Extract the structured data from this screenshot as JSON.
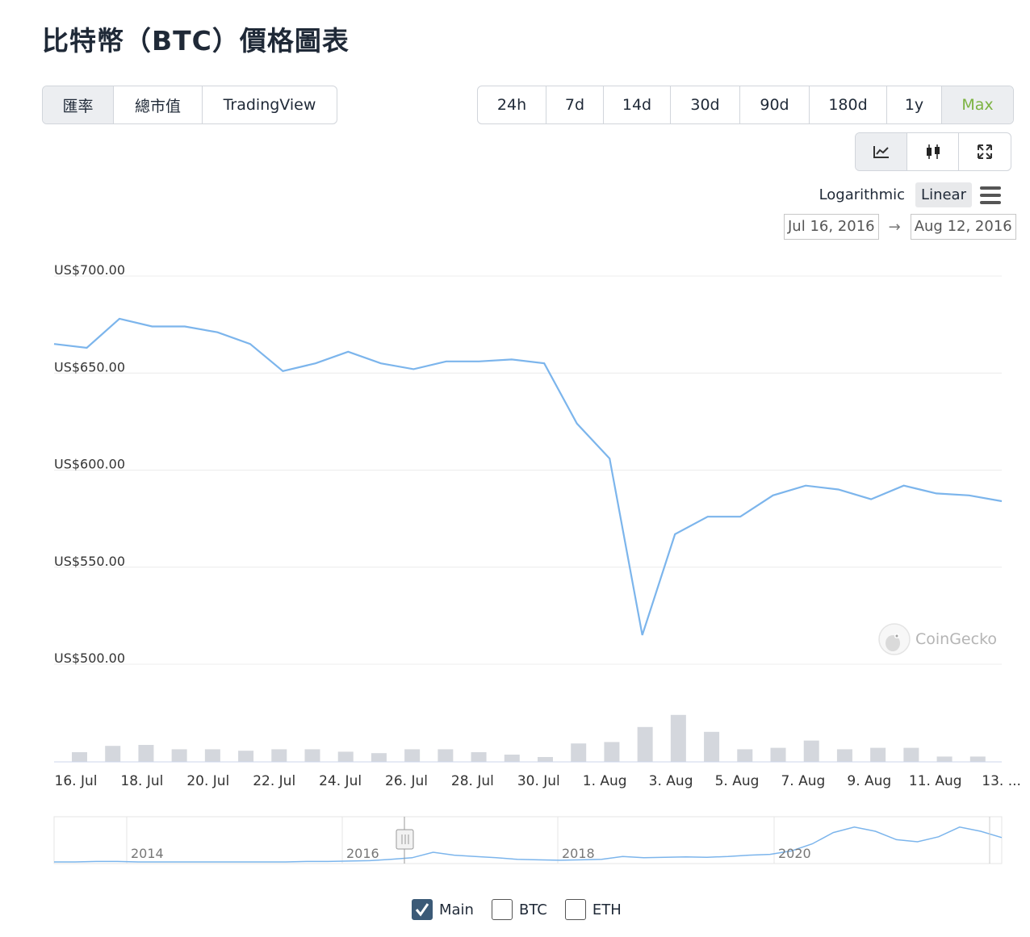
{
  "title": "比特幣（BTC）價格圖表",
  "view_tabs": [
    "匯率",
    "總市值",
    "TradingView"
  ],
  "range_tabs": [
    "24h",
    "7d",
    "14d",
    "30d",
    "90d",
    "180d",
    "1y",
    "Max"
  ],
  "tools": [
    {
      "name": "line-chart-icon",
      "glyph": "⟋"
    },
    {
      "name": "candlestick-icon",
      "glyph": "▮"
    },
    {
      "name": "fullscreen-icon",
      "glyph": "⤢"
    }
  ],
  "scale": {
    "log_label": "Logarithmic",
    "linear_label": "Linear",
    "active": "Linear"
  },
  "date_range": {
    "from": "Jul 16, 2016",
    "to": "Aug 12, 2016",
    "arrow": "→"
  },
  "watermark": "CoinGecko",
  "legend": [
    {
      "label": "Main",
      "checked": true
    },
    {
      "label": "BTC",
      "checked": false
    },
    {
      "label": "ETH",
      "checked": false
    }
  ],
  "colors": {
    "line": "#7cb5ec",
    "volume": "#d4d7dd",
    "max_active": "#7cb342"
  },
  "chart_data": {
    "type": "line",
    "y_ticks": [
      "US$700.00",
      "US$650.00",
      "US$600.00",
      "US$550.00",
      "US$500.00"
    ],
    "ylim": [
      500,
      700
    ],
    "x_tick_labels": [
      "16. Jul",
      "18. Jul",
      "20. Jul",
      "22. Jul",
      "24. Jul",
      "26. Jul",
      "28. Jul",
      "30. Jul",
      "1. Aug",
      "3. Aug",
      "5. Aug",
      "7. Aug",
      "9. Aug",
      "11. Aug",
      "13. ..."
    ],
    "series": [
      {
        "values": [
          665,
          663,
          678,
          674,
          674,
          671,
          665,
          651,
          655,
          661,
          655,
          652,
          656,
          656,
          657,
          655,
          624,
          606,
          515,
          567,
          576,
          576,
          587,
          592,
          590,
          585,
          592,
          588,
          587,
          584
        ]
      }
    ],
    "volume_relative": [
      0.2,
      0.33,
      0.35,
      0.26,
      0.26,
      0.23,
      0.26,
      0.26,
      0.21,
      0.18,
      0.26,
      0.26,
      0.2,
      0.15,
      0.1,
      0.38,
      0.41,
      0.72,
      0.97,
      0.62,
      0.26,
      0.29,
      0.44,
      0.26,
      0.29,
      0.29,
      0.11,
      0.11
    ],
    "navigator": {
      "year_labels": [
        "2014",
        "2016",
        "2018",
        "2020"
      ],
      "values": [
        0.02,
        0.02,
        0.03,
        0.03,
        0.02,
        0.02,
        0.02,
        0.02,
        0.02,
        0.02,
        0.02,
        0.02,
        0.03,
        0.03,
        0.04,
        0.05,
        0.08,
        0.12,
        0.25,
        0.18,
        0.15,
        0.12,
        0.08,
        0.07,
        0.06,
        0.07,
        0.08,
        0.15,
        0.12,
        0.13,
        0.14,
        0.13,
        0.15,
        0.18,
        0.2,
        0.28,
        0.45,
        0.72,
        0.85,
        0.75,
        0.55,
        0.5,
        0.62,
        0.85,
        0.75,
        0.6
      ]
    }
  }
}
